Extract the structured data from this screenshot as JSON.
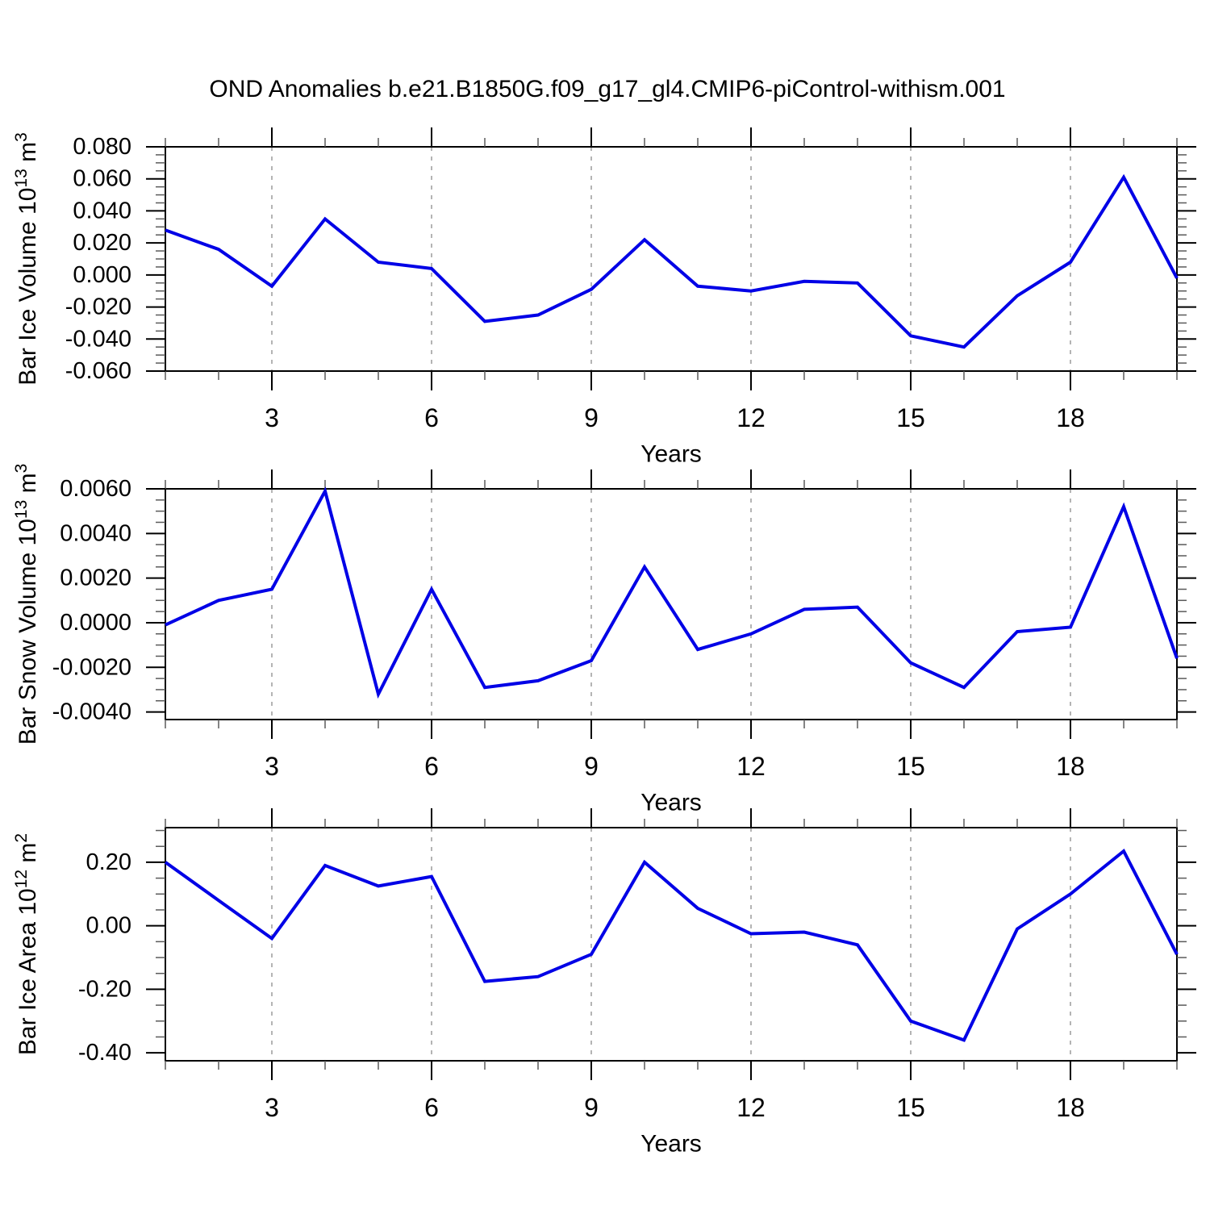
{
  "title": "OND Anomalies b.e21.B1850G.f09_g17_gl4.CMIP6-piControl-withism.001",
  "colors": {
    "background": "#ffffff",
    "line": "#0000e6",
    "frame": "#000000",
    "grid": "#8c8c8c",
    "major_tick": "#000000",
    "minor_tick": "#5a5a5a",
    "text": "#000000"
  },
  "chart_data": [
    {
      "id": "ice-volume",
      "type": "line",
      "ylabel_text": "Bar Ice Volume 10^13 m^3",
      "ylabel_parts": [
        {
          "text": "Bar Ice Volume 10"
        },
        {
          "text": "13",
          "sup": true
        },
        {
          "text": " m"
        },
        {
          "text": "3",
          "sup": true
        }
      ],
      "xlabel": "Years",
      "x": [
        1,
        2,
        3,
        4,
        5,
        6,
        7,
        8,
        9,
        10,
        11,
        12,
        13,
        14,
        15,
        16,
        17,
        18,
        19,
        20
      ],
      "values": [
        0.028,
        0.016,
        -0.007,
        0.035,
        0.008,
        0.004,
        -0.029,
        -0.025,
        -0.009,
        0.022,
        -0.007,
        -0.01,
        -0.004,
        -0.005,
        -0.038,
        -0.045,
        -0.013,
        0.008,
        0.061,
        -0.002
      ],
      "xlim": [
        1,
        20
      ],
      "ylim": [
        -0.06,
        0.08
      ],
      "xticks": [
        3,
        6,
        9,
        12,
        15,
        18
      ],
      "xminor_step": 1,
      "yticks": [
        {
          "v": 0.08,
          "label": "0.080"
        },
        {
          "v": 0.06,
          "label": "0.060"
        },
        {
          "v": 0.04,
          "label": "0.040"
        },
        {
          "v": 0.02,
          "label": "0.020"
        },
        {
          "v": 0.0,
          "label": "0.000"
        },
        {
          "v": -0.02,
          "label": "-0.020"
        },
        {
          "v": -0.04,
          "label": "-0.040"
        },
        {
          "v": -0.06,
          "label": "-0.060"
        }
      ],
      "yminor_step": 0.005,
      "grid": "vertical-dashed-at-xticks",
      "legend": "none"
    },
    {
      "id": "snow-volume",
      "type": "line",
      "ylabel_text": "Bar Snow Volume 10^13 m^3",
      "ylabel_parts": [
        {
          "text": "Bar Snow Volume 10"
        },
        {
          "text": "13",
          "sup": true
        },
        {
          "text": " m"
        },
        {
          "text": "3",
          "sup": true
        }
      ],
      "xlabel": "Years",
      "x": [
        1,
        2,
        3,
        4,
        5,
        6,
        7,
        8,
        9,
        10,
        11,
        12,
        13,
        14,
        15,
        16,
        17,
        18,
        19,
        20
      ],
      "values": [
        -0.0001,
        0.001,
        0.0015,
        0.0059,
        -0.0032,
        0.0015,
        -0.0029,
        -0.0026,
        -0.0017,
        0.0025,
        -0.0012,
        -0.0005,
        0.0006,
        0.0007,
        -0.0018,
        -0.0029,
        -0.0004,
        -0.0002,
        0.0052,
        -0.0016
      ],
      "xlim": [
        1,
        20
      ],
      "ylim": [
        -0.00434,
        0.006
      ],
      "xticks": [
        3,
        6,
        9,
        12,
        15,
        18
      ],
      "xminor_step": 1,
      "yticks": [
        {
          "v": 0.006,
          "label": "0.0060"
        },
        {
          "v": 0.004,
          "label": "0.0040"
        },
        {
          "v": 0.002,
          "label": "0.0020"
        },
        {
          "v": 0.0,
          "label": "0.0000"
        },
        {
          "v": -0.002,
          "label": "-0.0020"
        },
        {
          "v": -0.004,
          "label": "-0.0040"
        }
      ],
      "yminor_step": 0.0005,
      "grid": "vertical-dashed-at-xticks",
      "legend": "none"
    },
    {
      "id": "ice-area",
      "type": "line",
      "ylabel_text": "Bar Ice Area 10^12 m^2",
      "ylabel_parts": [
        {
          "text": "Bar Ice Area 10"
        },
        {
          "text": "12",
          "sup": true
        },
        {
          "text": " m"
        },
        {
          "text": "2",
          "sup": true
        }
      ],
      "xlabel": "Years",
      "x": [
        1,
        2,
        3,
        4,
        5,
        6,
        7,
        8,
        9,
        10,
        11,
        12,
        13,
        14,
        15,
        16,
        17,
        18,
        19,
        20
      ],
      "values": [
        0.2,
        0.08,
        -0.04,
        0.19,
        0.125,
        0.155,
        -0.175,
        -0.16,
        -0.09,
        0.2,
        0.055,
        -0.025,
        -0.02,
        -0.06,
        -0.3,
        -0.36,
        -0.01,
        0.1,
        0.235,
        -0.09
      ],
      "xlim": [
        1,
        20
      ],
      "ylim": [
        -0.425,
        0.309
      ],
      "xticks": [
        3,
        6,
        9,
        12,
        15,
        18
      ],
      "xminor_step": 1,
      "yticks": [
        {
          "v": 0.2,
          "label": "0.20"
        },
        {
          "v": 0.0,
          "label": "0.00"
        },
        {
          "v": -0.2,
          "label": "-0.20"
        },
        {
          "v": -0.4,
          "label": "-0.40"
        }
      ],
      "yminor_step": 0.05,
      "grid": "vertical-dashed-at-xticks",
      "legend": "none"
    }
  ]
}
